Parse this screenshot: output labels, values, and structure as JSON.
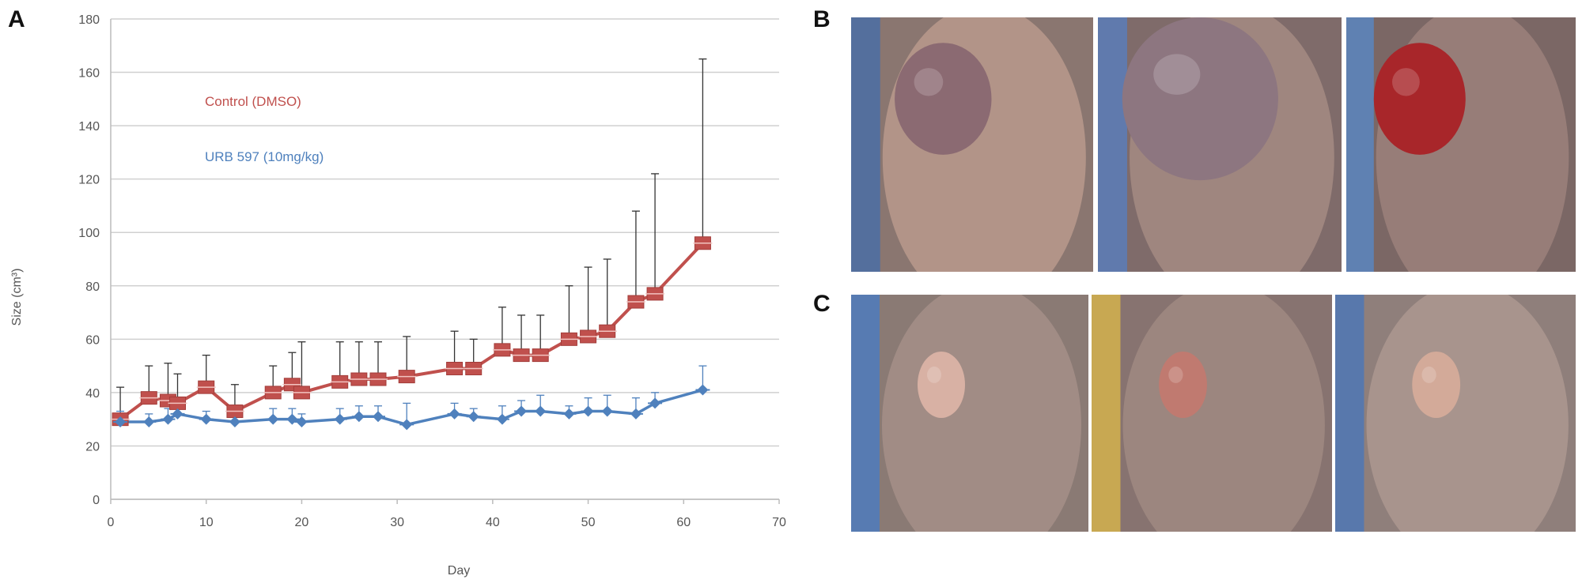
{
  "panels": {
    "a": "A",
    "b": "B",
    "c": "C"
  },
  "chart_data": {
    "type": "line",
    "xlabel": "Day",
    "ylabel": "Size (cm³)",
    "xlim": [
      0,
      70
    ],
    "ylim": [
      0,
      180
    ],
    "xticks": [
      0,
      10,
      20,
      30,
      40,
      50,
      60,
      70
    ],
    "yticks": [
      0,
      20,
      40,
      60,
      80,
      100,
      120,
      140,
      160,
      180
    ],
    "grid": "horizontal",
    "legend_placement": "top-left inside plot",
    "series": [
      {
        "name": "Control (DMSO)",
        "color": "#c0504d",
        "marker": "square",
        "x": [
          1,
          4,
          6,
          7,
          10,
          13,
          17,
          19,
          20,
          24,
          26,
          28,
          31,
          36,
          38,
          41,
          43,
          45,
          48,
          50,
          52,
          55,
          57,
          62
        ],
        "y": [
          30,
          38,
          37,
          36,
          42,
          33,
          40,
          43,
          40,
          44,
          45,
          45,
          46,
          49,
          49,
          56,
          54,
          54,
          60,
          61,
          63,
          74,
          77,
          96
        ],
        "error": [
          12,
          12,
          14,
          11,
          12,
          10,
          10,
          12,
          19,
          15,
          14,
          14,
          15,
          14,
          11,
          16,
          15,
          15,
          20,
          26,
          27,
          34,
          45,
          69
        ]
      },
      {
        "name": "URB 597 (10mg/kg)",
        "color": "#4f81bd",
        "marker": "diamond",
        "x": [
          1,
          4,
          6,
          7,
          10,
          13,
          17,
          19,
          20,
          24,
          26,
          28,
          31,
          36,
          38,
          41,
          43,
          45,
          48,
          50,
          52,
          55,
          57,
          62
        ],
        "y": [
          29,
          29,
          30,
          32,
          30,
          29,
          30,
          30,
          29,
          30,
          31,
          31,
          28,
          32,
          31,
          30,
          33,
          33,
          32,
          33,
          33,
          32,
          36,
          41
        ],
        "error": [
          4,
          3,
          4,
          3,
          3,
          3,
          4,
          4,
          3,
          4,
          4,
          4,
          8,
          4,
          3,
          5,
          4,
          6,
          3,
          5,
          6,
          6,
          4,
          9
        ]
      }
    ]
  },
  "photos": [
    {
      "name": "photo-b-1",
      "bg": "#8a7670",
      "tumor": "#8b6a72",
      "tissue": "#b89a8c",
      "accent": "#4a6fa5"
    },
    {
      "name": "photo-b-2",
      "bg": "#7f6b6a",
      "tumor": "#8d7680",
      "tissue": "#a58b82",
      "accent": "#5a7cb8"
    },
    {
      "name": "photo-b-3",
      "bg": "#7b6765",
      "tumor": "#a8262a",
      "tissue": "#9c817b",
      "accent": "#5b86c0"
    },
    {
      "name": "photo-c-1",
      "bg": "#8a7a74",
      "tumor": "#d8b1a4",
      "tissue": "#a48f88",
      "accent": "#4d7bbd"
    },
    {
      "name": "photo-c-2",
      "bg": "#877370",
      "tumor": "#c07a70",
      "tissue": "#a08981",
      "accent": "#d3b24c"
    },
    {
      "name": "photo-c-3",
      "bg": "#8f7f7b",
      "tumor": "#d3aa99",
      "tissue": "#ad9891",
      "accent": "#4f77b5"
    }
  ]
}
